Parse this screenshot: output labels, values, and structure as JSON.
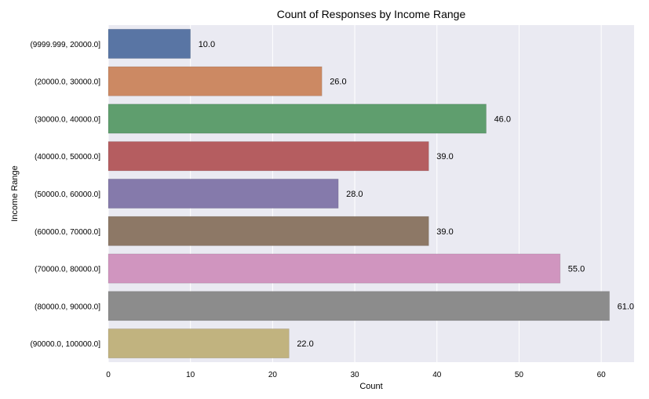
{
  "chart_data": {
    "type": "bar",
    "orientation": "horizontal",
    "title": "Count of Responses by Income Range",
    "xlabel": "Count",
    "ylabel": "Income Range",
    "categories": [
      "(9999.999, 20000.0]",
      "(20000.0, 30000.0]",
      "(30000.0, 40000.0]",
      "(40000.0, 50000.0]",
      "(50000.0, 60000.0]",
      "(60000.0, 70000.0]",
      "(70000.0, 80000.0]",
      "(80000.0, 90000.0]",
      "(90000.0, 100000.0]"
    ],
    "values": [
      10,
      26,
      46,
      39,
      28,
      39,
      55,
      61,
      22
    ],
    "value_labels": [
      "10.0",
      "26.0",
      "46.0",
      "39.0",
      "28.0",
      "39.0",
      "55.0",
      "61.0",
      "22.0"
    ],
    "xlim": [
      0,
      64
    ],
    "xticks": [
      0,
      10,
      20,
      30,
      40,
      50,
      60
    ],
    "colors": [
      "#5975a4",
      "#cc8963",
      "#5f9e6e",
      "#b55d60",
      "#857aab",
      "#8d7866",
      "#d095bf",
      "#8c8c8c",
      "#c1b37f"
    ],
    "grid": true,
    "plot_background": "#eaeaf2"
  }
}
